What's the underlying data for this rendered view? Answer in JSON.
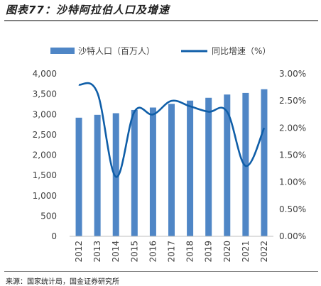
{
  "header": {
    "title": "图表77：沙特阿拉伯人口及增速"
  },
  "footer": {
    "source": "来源：国家统计局，国金证券研究所"
  },
  "chart_data": {
    "type": "bar+line",
    "categories": [
      "2012",
      "2013",
      "2014",
      "2015",
      "2016",
      "2017",
      "2018",
      "2019",
      "2020",
      "2021",
      "2022"
    ],
    "series": [
      {
        "name": "沙特人口（百万人）",
        "type": "bar",
        "axis": "left",
        "values": [
          2920,
          2990,
          3030,
          3110,
          3170,
          3260,
          3340,
          3410,
          3490,
          3530,
          3620
        ],
        "color": "#4f86c6"
      },
      {
        "name": "同比增速（%）",
        "type": "line",
        "axis": "right",
        "values": [
          2.8,
          2.65,
          1.1,
          2.3,
          2.25,
          2.5,
          2.4,
          2.3,
          2.3,
          1.3,
          2.0
        ],
        "color": "#0f5ea8"
      }
    ],
    "y_left": {
      "ylim": [
        0,
        4000
      ],
      "ticks": [
        "0",
        "500",
        "1,000",
        "1,500",
        "2,000",
        "2,500",
        "3,000",
        "3,500",
        "4,000"
      ]
    },
    "y_right": {
      "ylim": [
        0,
        3
      ],
      "ticks": [
        "0.00%",
        "0.50%",
        "1.00%",
        "1.50%",
        "2.00%",
        "2.50%",
        "3.00%"
      ]
    },
    "legend_position": "top",
    "grid": false
  }
}
